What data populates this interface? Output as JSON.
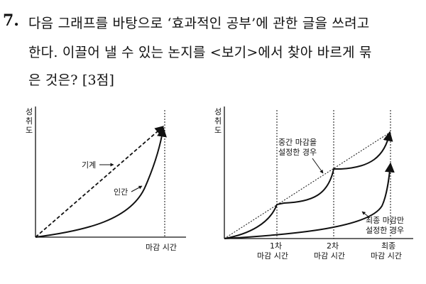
{
  "question": {
    "number": "7.",
    "lines": [
      "다음 그래프를 바탕으로 ‘효과적인 공부’에 관한 글을 쓰려고",
      "한다. 이끌어 낼 수 있는 논지를 <보기>에서 찾아 바르게 묶",
      "은 것은? [3점]"
    ]
  },
  "left_graph": {
    "y_label": [
      "성",
      "취",
      "도"
    ],
    "x_label": "마감 시간",
    "label_machine": "기계",
    "label_human": "인간"
  },
  "right_graph": {
    "y_label": [
      "성",
      "취",
      "도"
    ],
    "label_mid": [
      "중간 마감을",
      "설정한 경우"
    ],
    "label_final": [
      "최종 마감만",
      "설정한 경우"
    ],
    "ticks": [
      [
        "1차",
        "마감 시간"
      ],
      [
        "2차",
        "마감 시간"
      ],
      [
        "최종",
        "마감 시간"
      ]
    ]
  }
}
